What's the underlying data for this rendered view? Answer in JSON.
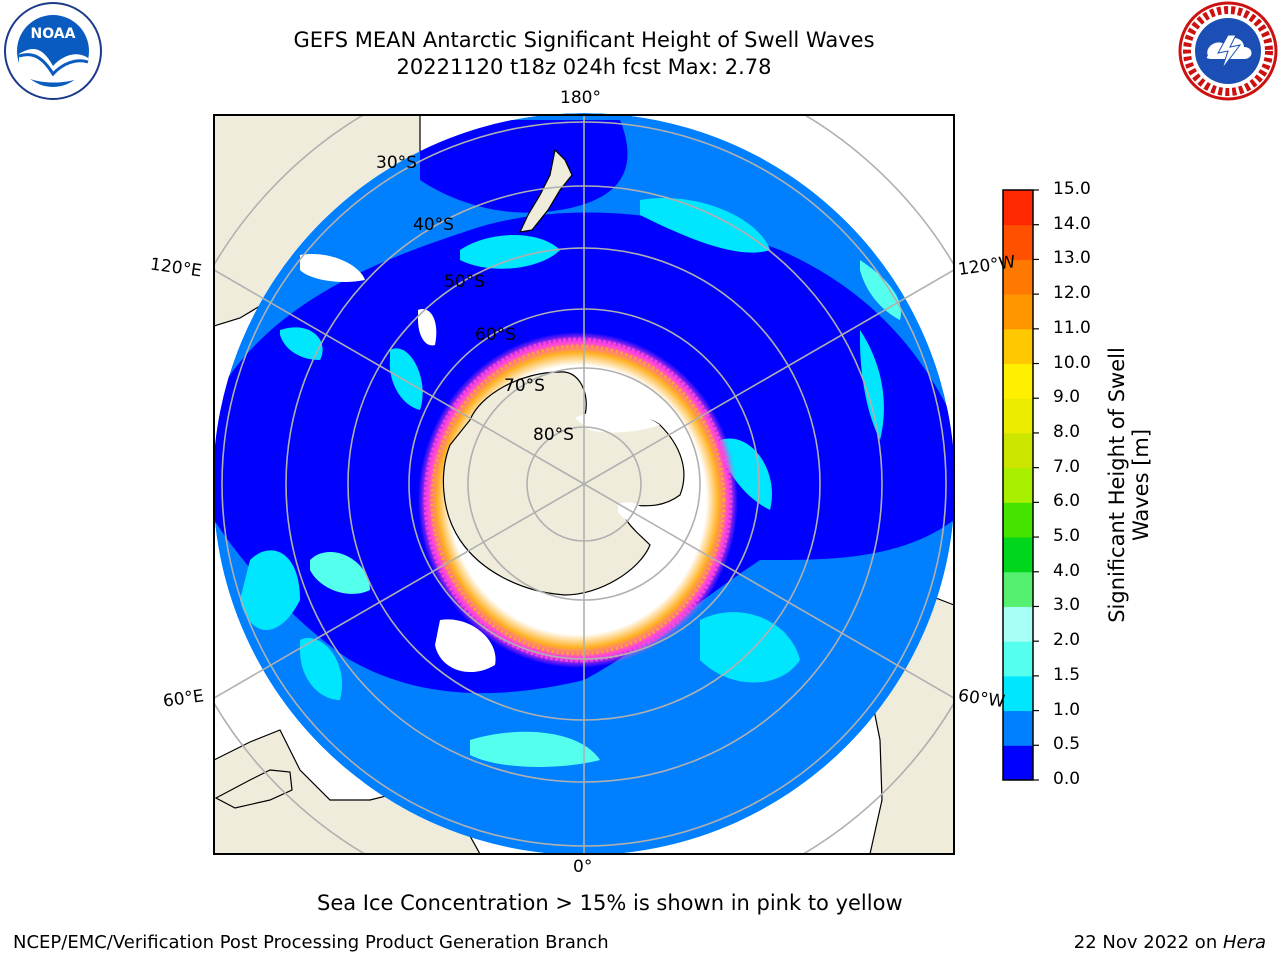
{
  "header": {
    "title_line1": "GEFS MEAN Antarctic Significant Height of Swell Waves",
    "title_line2": "20221120 t18z 024h fcst   Max: 2.78"
  },
  "logos": {
    "left": "noaa-logo",
    "right": "national-weather-service-logo"
  },
  "map": {
    "projection": "south-polar-stereographic",
    "longitude_labels": {
      "top": "180°",
      "bottom": "0°",
      "upper_left": "120°E",
      "upper_right": "120°W",
      "lower_left": "60°E",
      "lower_right": "60°W"
    },
    "latitude_labels": [
      "30°S",
      "40°S",
      "50°S",
      "60°S",
      "70°S",
      "80°S"
    ],
    "colors": {
      "land": "#efecdc",
      "ice_free_ocean": "#0000ff",
      "grid": "#b0b0b0",
      "sea_ice_low": "#ff44dd",
      "sea_ice_high": "#ffb020"
    }
  },
  "colorbar": {
    "label_line1": "Significant Height of Swell",
    "label_line2": "Waves [m]",
    "ticks": [
      "0.0",
      "0.5",
      "1.0",
      "1.5",
      "2.0",
      "3.0",
      "4.0",
      "5.0",
      "6.0",
      "7.0",
      "8.0",
      "9.0",
      "10.0",
      "11.0",
      "12.0",
      "13.0",
      "14.0",
      "15.0"
    ],
    "colors": [
      "#0000ff",
      "#0080ff",
      "#00e6ff",
      "#55ffee",
      "#a8fff5",
      "#55f070",
      "#00d61c",
      "#44e400",
      "#a8f000",
      "#cce600",
      "#ecec00",
      "#fff000",
      "#ffc800",
      "#ff9600",
      "#ff7800",
      "#ff5000",
      "#ff2800"
    ]
  },
  "footer": {
    "note": "Sea Ice Concentration > 15% is shown in pink to yellow",
    "credit": "NCEP/EMC/Verification Post Processing Product Generation Branch",
    "date": "22 Nov 2022 on ",
    "host": "Hera"
  }
}
